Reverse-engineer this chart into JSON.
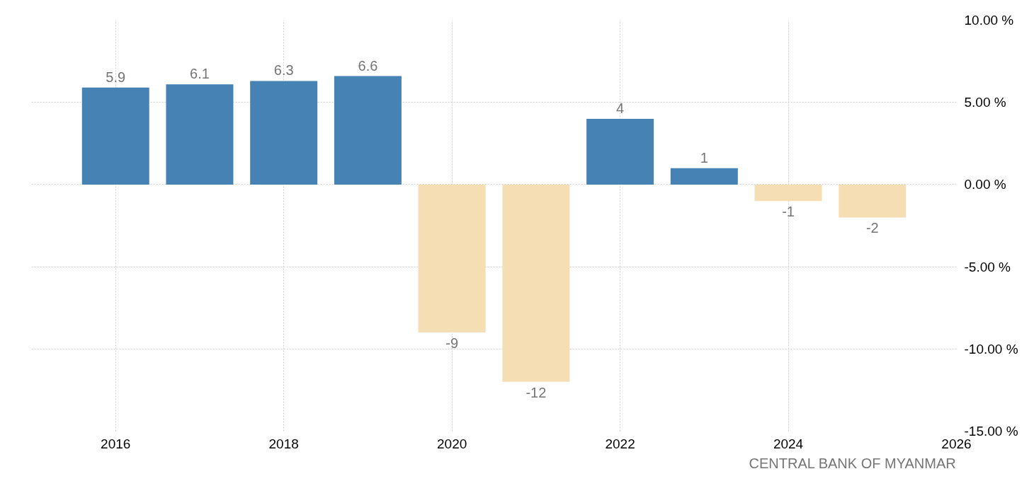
{
  "chart_data": {
    "type": "bar",
    "x": [
      2016,
      2017,
      2018,
      2019,
      2020,
      2021,
      2022,
      2023,
      2024,
      2025
    ],
    "values": [
      5.9,
      6.1,
      6.3,
      6.6,
      -9,
      -12,
      4,
      1,
      -1,
      -2
    ],
    "colors": [
      "#4682b4",
      "#4682b4",
      "#4682b4",
      "#4682b4",
      "#f5deb3",
      "#f5deb3",
      "#4682b4",
      "#4682b4",
      "#f5deb3",
      "#f5deb3"
    ],
    "data_labels": true,
    "xlim": [
      2015,
      2026
    ],
    "xticks": [
      2016,
      2018,
      2020,
      2022,
      2024,
      2026
    ],
    "ylim": [
      -15,
      10
    ],
    "yticks": [
      {
        "value": 10,
        "label": "10.00 %"
      },
      {
        "value": 5,
        "label": "5.00 %"
      },
      {
        "value": 0,
        "label": "0.00 %"
      },
      {
        "value": -5,
        "label": "-5.00 %"
      },
      {
        "value": -10,
        "label": "-10.00 %"
      },
      {
        "value": -15,
        "label": "-15.00 %"
      }
    ],
    "grid": true,
    "annotations": [
      "CENTRAL BANK OF MYANMAR"
    ]
  }
}
